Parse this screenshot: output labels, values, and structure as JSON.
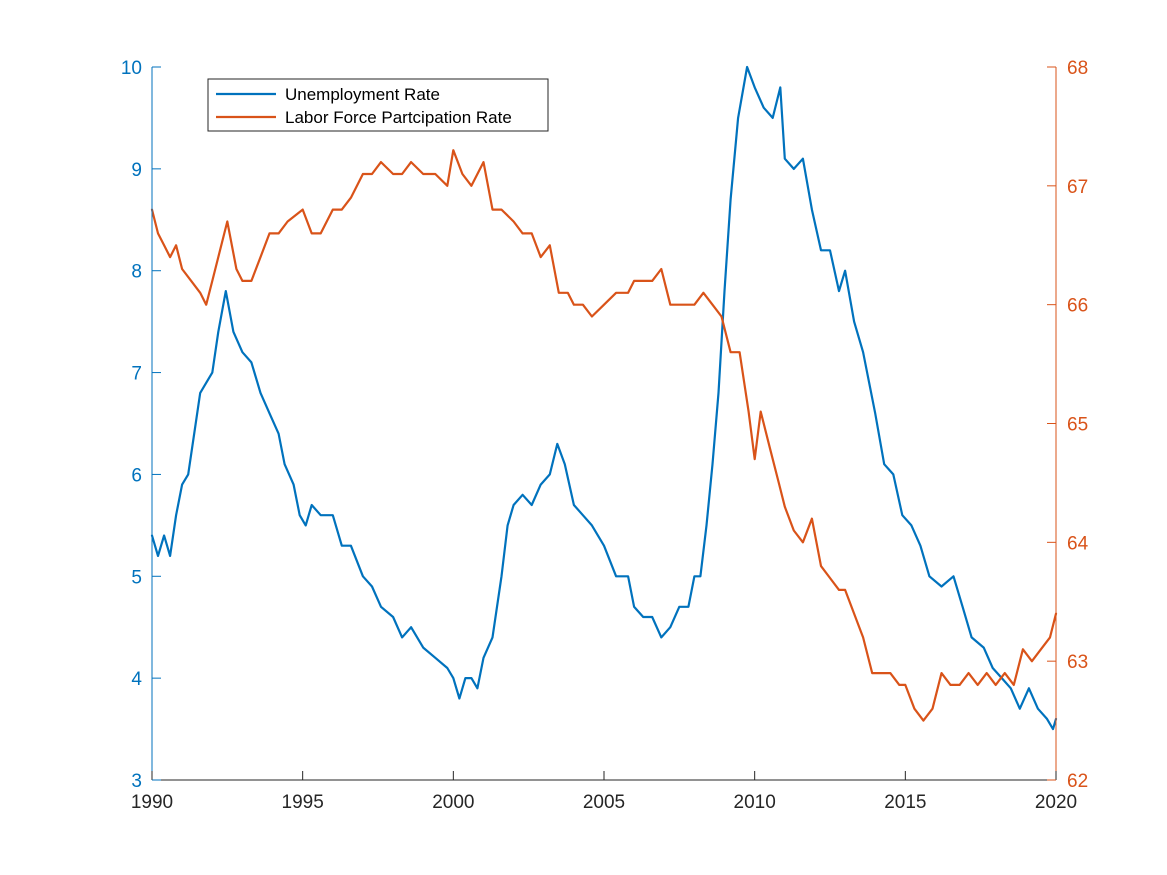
{
  "chart_data": {
    "type": "line",
    "title": "",
    "xlabel": "",
    "xlim": [
      1990,
      2020
    ],
    "x_ticks": [
      "1990",
      "1995",
      "2000",
      "2005",
      "2010",
      "2015",
      "2020"
    ],
    "left_axis": {
      "ylabel": "",
      "ylim": [
        3,
        10
      ],
      "ticks": [
        "3",
        "4",
        "5",
        "6",
        "7",
        "8",
        "9",
        "10"
      ],
      "color": "#0072BD"
    },
    "right_axis": {
      "ylabel": "",
      "ylim": [
        62,
        68
      ],
      "ticks": [
        "62",
        "63",
        "64",
        "65",
        "66",
        "67",
        "68"
      ],
      "color": "#D95319"
    },
    "grid": false,
    "legend_position": "top-left",
    "series": [
      {
        "name": "Unemployment Rate",
        "axis": "left",
        "color": "#0072BD",
        "points": [
          [
            1990.0,
            5.4
          ],
          [
            1990.2,
            5.2
          ],
          [
            1990.4,
            5.4
          ],
          [
            1990.6,
            5.2
          ],
          [
            1990.8,
            5.6
          ],
          [
            1991.0,
            5.9
          ],
          [
            1991.2,
            6.0
          ],
          [
            1991.4,
            6.4
          ],
          [
            1991.6,
            6.8
          ],
          [
            1991.8,
            6.9
          ],
          [
            1992.0,
            7.0
          ],
          [
            1992.2,
            7.4
          ],
          [
            1992.45,
            7.8
          ],
          [
            1992.7,
            7.4
          ],
          [
            1993.0,
            7.2
          ],
          [
            1993.3,
            7.1
          ],
          [
            1993.6,
            6.8
          ],
          [
            1993.9,
            6.6
          ],
          [
            1994.2,
            6.4
          ],
          [
            1994.4,
            6.1
          ],
          [
            1994.7,
            5.9
          ],
          [
            1994.9,
            5.6
          ],
          [
            1995.1,
            5.5
          ],
          [
            1995.3,
            5.7
          ],
          [
            1995.6,
            5.6
          ],
          [
            1996.0,
            5.6
          ],
          [
            1996.3,
            5.3
          ],
          [
            1996.6,
            5.3
          ],
          [
            1997.0,
            5.0
          ],
          [
            1997.3,
            4.9
          ],
          [
            1997.6,
            4.7
          ],
          [
            1998.0,
            4.6
          ],
          [
            1998.3,
            4.4
          ],
          [
            1998.6,
            4.5
          ],
          [
            1999.0,
            4.3
          ],
          [
            1999.4,
            4.2
          ],
          [
            1999.8,
            4.1
          ],
          [
            2000.0,
            4.0
          ],
          [
            2000.2,
            3.8
          ],
          [
            2000.4,
            4.0
          ],
          [
            2000.6,
            4.0
          ],
          [
            2000.8,
            3.9
          ],
          [
            2001.0,
            4.2
          ],
          [
            2001.3,
            4.4
          ],
          [
            2001.6,
            5.0
          ],
          [
            2001.8,
            5.5
          ],
          [
            2002.0,
            5.7
          ],
          [
            2002.3,
            5.8
          ],
          [
            2002.6,
            5.7
          ],
          [
            2002.9,
            5.9
          ],
          [
            2003.2,
            6.0
          ],
          [
            2003.45,
            6.3
          ],
          [
            2003.7,
            6.1
          ],
          [
            2004.0,
            5.7
          ],
          [
            2004.3,
            5.6
          ],
          [
            2004.6,
            5.5
          ],
          [
            2005.0,
            5.3
          ],
          [
            2005.4,
            5.0
          ],
          [
            2005.8,
            5.0
          ],
          [
            2006.0,
            4.7
          ],
          [
            2006.3,
            4.6
          ],
          [
            2006.6,
            4.6
          ],
          [
            2006.9,
            4.4
          ],
          [
            2007.2,
            4.5
          ],
          [
            2007.5,
            4.7
          ],
          [
            2007.8,
            4.7
          ],
          [
            2008.0,
            5.0
          ],
          [
            2008.2,
            5.0
          ],
          [
            2008.4,
            5.5
          ],
          [
            2008.6,
            6.1
          ],
          [
            2008.8,
            6.8
          ],
          [
            2009.0,
            7.8
          ],
          [
            2009.2,
            8.7
          ],
          [
            2009.45,
            9.5
          ],
          [
            2009.75,
            10.0
          ],
          [
            2010.0,
            9.8
          ],
          [
            2010.3,
            9.6
          ],
          [
            2010.6,
            9.5
          ],
          [
            2010.85,
            9.8
          ],
          [
            2011.0,
            9.1
          ],
          [
            2011.3,
            9.0
          ],
          [
            2011.6,
            9.1
          ],
          [
            2011.9,
            8.6
          ],
          [
            2012.2,
            8.2
          ],
          [
            2012.5,
            8.2
          ],
          [
            2012.8,
            7.8
          ],
          [
            2013.0,
            8.0
          ],
          [
            2013.3,
            7.5
          ],
          [
            2013.6,
            7.2
          ],
          [
            2014.0,
            6.6
          ],
          [
            2014.3,
            6.1
          ],
          [
            2014.6,
            6.0
          ],
          [
            2014.9,
            5.6
          ],
          [
            2015.2,
            5.5
          ],
          [
            2015.5,
            5.3
          ],
          [
            2015.8,
            5.0
          ],
          [
            2016.2,
            4.9
          ],
          [
            2016.6,
            5.0
          ],
          [
            2016.9,
            4.7
          ],
          [
            2017.2,
            4.4
          ],
          [
            2017.6,
            4.3
          ],
          [
            2017.9,
            4.1
          ],
          [
            2018.2,
            4.0
          ],
          [
            2018.5,
            3.9
          ],
          [
            2018.8,
            3.7
          ],
          [
            2019.1,
            3.9
          ],
          [
            2019.4,
            3.7
          ],
          [
            2019.7,
            3.6
          ],
          [
            2019.9,
            3.5
          ],
          [
            2020.0,
            3.6
          ]
        ]
      },
      {
        "name": "Labor Force Partcipation Rate",
        "axis": "right",
        "color": "#D95319",
        "points": [
          [
            1990.0,
            66.8
          ],
          [
            1990.2,
            66.6
          ],
          [
            1990.4,
            66.5
          ],
          [
            1990.6,
            66.4
          ],
          [
            1990.8,
            66.5
          ],
          [
            1991.0,
            66.3
          ],
          [
            1991.3,
            66.2
          ],
          [
            1991.6,
            66.1
          ],
          [
            1991.8,
            66.0
          ],
          [
            1992.0,
            66.2
          ],
          [
            1992.2,
            66.4
          ],
          [
            1992.5,
            66.7
          ],
          [
            1992.8,
            66.3
          ],
          [
            1993.0,
            66.2
          ],
          [
            1993.3,
            66.2
          ],
          [
            1993.6,
            66.4
          ],
          [
            1993.9,
            66.6
          ],
          [
            1994.2,
            66.6
          ],
          [
            1994.5,
            66.7
          ],
          [
            1995.0,
            66.8
          ],
          [
            1995.3,
            66.6
          ],
          [
            1995.6,
            66.6
          ],
          [
            1996.0,
            66.8
          ],
          [
            1996.3,
            66.8
          ],
          [
            1996.6,
            66.9
          ],
          [
            1997.0,
            67.1
          ],
          [
            1997.3,
            67.1
          ],
          [
            1997.6,
            67.2
          ],
          [
            1998.0,
            67.1
          ],
          [
            1998.3,
            67.1
          ],
          [
            1998.6,
            67.2
          ],
          [
            1999.0,
            67.1
          ],
          [
            1999.4,
            67.1
          ],
          [
            1999.8,
            67.0
          ],
          [
            2000.0,
            67.3
          ],
          [
            2000.3,
            67.1
          ],
          [
            2000.6,
            67.0
          ],
          [
            2001.0,
            67.2
          ],
          [
            2001.3,
            66.8
          ],
          [
            2001.6,
            66.8
          ],
          [
            2002.0,
            66.7
          ],
          [
            2002.3,
            66.6
          ],
          [
            2002.6,
            66.6
          ],
          [
            2002.9,
            66.4
          ],
          [
            2003.2,
            66.5
          ],
          [
            2003.5,
            66.1
          ],
          [
            2003.8,
            66.1
          ],
          [
            2004.0,
            66.0
          ],
          [
            2004.3,
            66.0
          ],
          [
            2004.6,
            65.9
          ],
          [
            2005.0,
            66.0
          ],
          [
            2005.4,
            66.1
          ],
          [
            2005.8,
            66.1
          ],
          [
            2006.0,
            66.2
          ],
          [
            2006.3,
            66.2
          ],
          [
            2006.6,
            66.2
          ],
          [
            2006.9,
            66.3
          ],
          [
            2007.2,
            66.0
          ],
          [
            2007.5,
            66.0
          ],
          [
            2007.8,
            66.0
          ],
          [
            2008.0,
            66.0
          ],
          [
            2008.3,
            66.1
          ],
          [
            2008.6,
            66.0
          ],
          [
            2008.9,
            65.9
          ],
          [
            2009.2,
            65.6
          ],
          [
            2009.5,
            65.6
          ],
          [
            2009.8,
            65.1
          ],
          [
            2010.0,
            64.7
          ],
          [
            2010.2,
            65.1
          ],
          [
            2010.5,
            64.8
          ],
          [
            2010.8,
            64.5
          ],
          [
            2011.0,
            64.3
          ],
          [
            2011.3,
            64.1
          ],
          [
            2011.6,
            64.0
          ],
          [
            2011.9,
            64.2
          ],
          [
            2012.2,
            63.8
          ],
          [
            2012.5,
            63.7
          ],
          [
            2012.8,
            63.6
          ],
          [
            2013.0,
            63.6
          ],
          [
            2013.3,
            63.4
          ],
          [
            2013.6,
            63.2
          ],
          [
            2013.9,
            62.9
          ],
          [
            2014.2,
            62.9
          ],
          [
            2014.5,
            62.9
          ],
          [
            2014.8,
            62.8
          ],
          [
            2015.0,
            62.8
          ],
          [
            2015.3,
            62.6
          ],
          [
            2015.6,
            62.5
          ],
          [
            2015.9,
            62.6
          ],
          [
            2016.2,
            62.9
          ],
          [
            2016.5,
            62.8
          ],
          [
            2016.8,
            62.8
          ],
          [
            2017.1,
            62.9
          ],
          [
            2017.4,
            62.8
          ],
          [
            2017.7,
            62.9
          ],
          [
            2018.0,
            62.8
          ],
          [
            2018.3,
            62.9
          ],
          [
            2018.6,
            62.8
          ],
          [
            2018.9,
            63.1
          ],
          [
            2019.2,
            63.0
          ],
          [
            2019.5,
            63.1
          ],
          [
            2019.8,
            63.2
          ],
          [
            2020.0,
            63.4
          ]
        ]
      }
    ]
  }
}
